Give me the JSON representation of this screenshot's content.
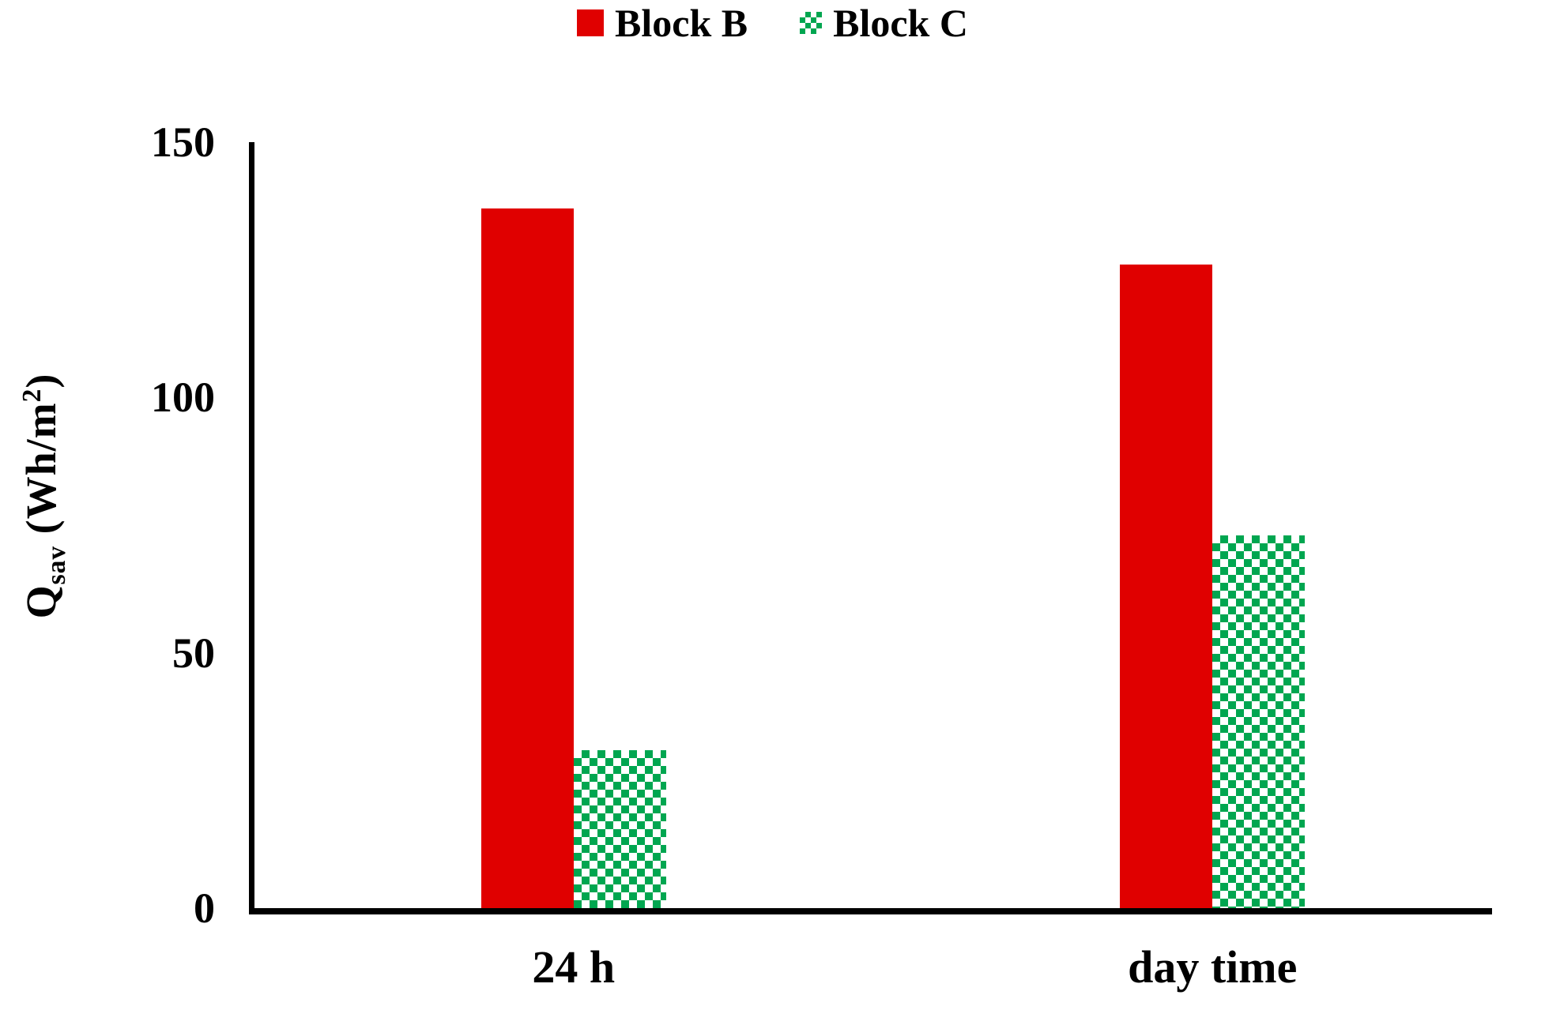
{
  "y_axis_title": {
    "base": "Q",
    "sub": "sav",
    "mid": " (Wh/m",
    "sup": "2",
    "end": ")"
  },
  "chart_data": {
    "type": "bar",
    "categories": [
      "24 h",
      "day time"
    ],
    "series": [
      {
        "name": "Block B",
        "pattern": "solid",
        "color": "#e00000",
        "values": [
          137,
          126
        ]
      },
      {
        "name": "Block C",
        "pattern": "checker",
        "color": "#00a650",
        "values": [
          31,
          73
        ]
      }
    ],
    "title": "",
    "xlabel": "",
    "ylabel": "Qsav (Wh/m2)",
    "ylim": [
      0,
      150
    ],
    "yticks": [
      0,
      50,
      100,
      150
    ],
    "grid": false,
    "legend_position": "top-center",
    "axis_color": "#000000",
    "background_color": "#ffffff"
  }
}
